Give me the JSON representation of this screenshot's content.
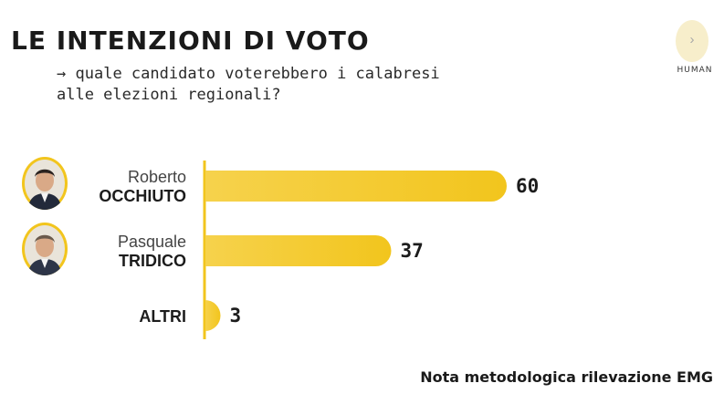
{
  "header": {
    "title": "LE INTENZIONI DI VOTO",
    "subtitle_arrow": "→",
    "subtitle_line1": "quale candidato voterebbero i calabresi",
    "subtitle_line2": "alle elezioni regionali?"
  },
  "brand": {
    "name": "HUMAN",
    "mark_glyph": "›",
    "colors": {
      "mark_bg": "#f7eecb"
    }
  },
  "colors": {
    "bar_start": "#f6d24c",
    "bar_end": "#f2c51d",
    "axis": "#f2c51d",
    "text": "#1c1c1c"
  },
  "chart_data": {
    "type": "bar",
    "orientation": "horizontal",
    "categories": [
      {
        "first": "Roberto",
        "last": "OCCHIUTO",
        "value_label": "60",
        "has_avatar": true,
        "avatar": "photo-occhiuto"
      },
      {
        "first": "Pasquale",
        "last": "TRIDICO",
        "value_label": "37",
        "has_avatar": true,
        "avatar": "photo-tridico"
      },
      {
        "first": "",
        "last": "ALTRI",
        "value_label": "3",
        "has_avatar": false
      }
    ],
    "values": [
      60,
      37,
      3
    ],
    "xlim": [
      0,
      100
    ],
    "grid": false,
    "legend": "none"
  },
  "footer": {
    "note": "Nota metodologica rilevazione EMG"
  }
}
